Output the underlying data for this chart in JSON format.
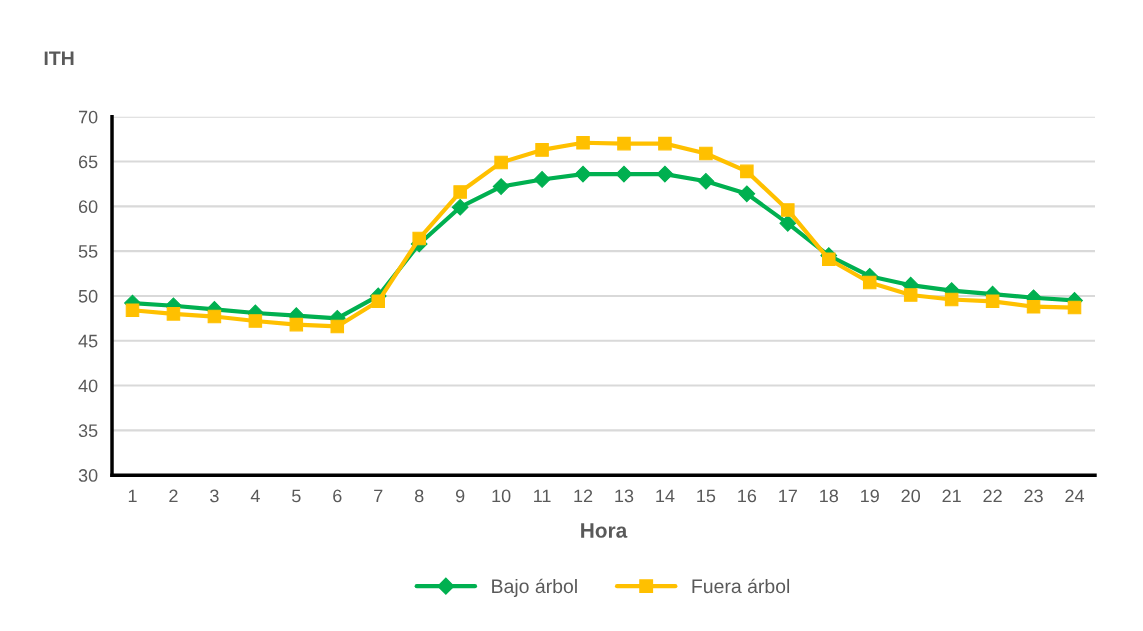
{
  "chart_data": {
    "type": "line",
    "ylabel": "ITH",
    "xlabel": "Hora",
    "categories": [
      "1",
      "2",
      "3",
      "4",
      "5",
      "6",
      "7",
      "8",
      "9",
      "10",
      "11",
      "12",
      "13",
      "14",
      "15",
      "16",
      "17",
      "18",
      "19",
      "20",
      "21",
      "22",
      "23",
      "24"
    ],
    "series": [
      {
        "name": "Bajo árbol",
        "color": "#00b050",
        "marker": "diamond",
        "values": [
          49.2,
          48.9,
          48.5,
          48.1,
          47.8,
          47.5,
          50.0,
          55.8,
          59.9,
          62.2,
          63.0,
          63.6,
          63.6,
          63.6,
          62.8,
          61.4,
          58.1,
          54.5,
          52.2,
          51.2,
          50.6,
          50.2,
          49.8,
          49.5
        ]
      },
      {
        "name": "Fuera árbol",
        "color": "#ffc000",
        "marker": "square",
        "values": [
          48.4,
          48.0,
          47.7,
          47.2,
          46.8,
          46.6,
          49.4,
          56.4,
          61.6,
          64.9,
          66.3,
          67.1,
          67.0,
          67.0,
          65.9,
          63.9,
          59.6,
          54.1,
          51.5,
          50.1,
          49.6,
          49.4,
          48.8,
          48.7
        ]
      }
    ],
    "ylim": [
      30,
      70
    ],
    "yticks": [
      30,
      35,
      40,
      45,
      50,
      55,
      60,
      65,
      70
    ],
    "grid": "y",
    "legend": "bottom",
    "line_style": "solid"
  }
}
